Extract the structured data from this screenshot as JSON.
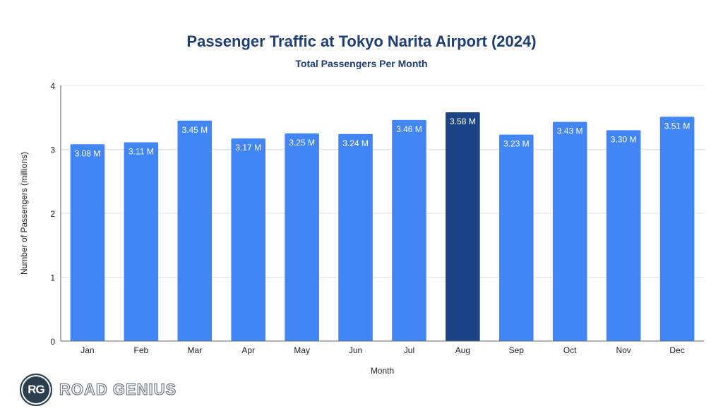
{
  "chart_data": {
    "type": "bar",
    "title": "Passenger Traffic at Tokyo Narita Airport (2024)",
    "subtitle": "Total Passengers Per Month",
    "xlabel": "Month",
    "ylabel": "Number of Passengers (millions)",
    "categories": [
      "Jan",
      "Feb",
      "Mar",
      "Apr",
      "May",
      "Jun",
      "Jul",
      "Aug",
      "Sep",
      "Oct",
      "Nov",
      "Dec"
    ],
    "values": [
      3.08,
      3.11,
      3.45,
      3.17,
      3.25,
      3.24,
      3.46,
      3.58,
      3.23,
      3.43,
      3.3,
      3.51
    ],
    "data_labels": [
      "3.08 M",
      "3.11 M",
      "3.45 M",
      "3.17 M",
      "3.25 M",
      "3.24 M",
      "3.46 M",
      "3.58 M",
      "3.23 M",
      "3.43 M",
      "3.30 M",
      "3.51 M"
    ],
    "ylim": [
      0,
      4
    ],
    "yticks": [
      0,
      1,
      2,
      3,
      4
    ],
    "grid": true,
    "legend": "none",
    "highlight_index": 7,
    "colors": {
      "bar": "#4285f4",
      "highlight": "#1c4587",
      "title": "#1f3f73"
    }
  },
  "branding": {
    "logo_initials": "RG",
    "logo_text": "ROAD GENIUS"
  }
}
